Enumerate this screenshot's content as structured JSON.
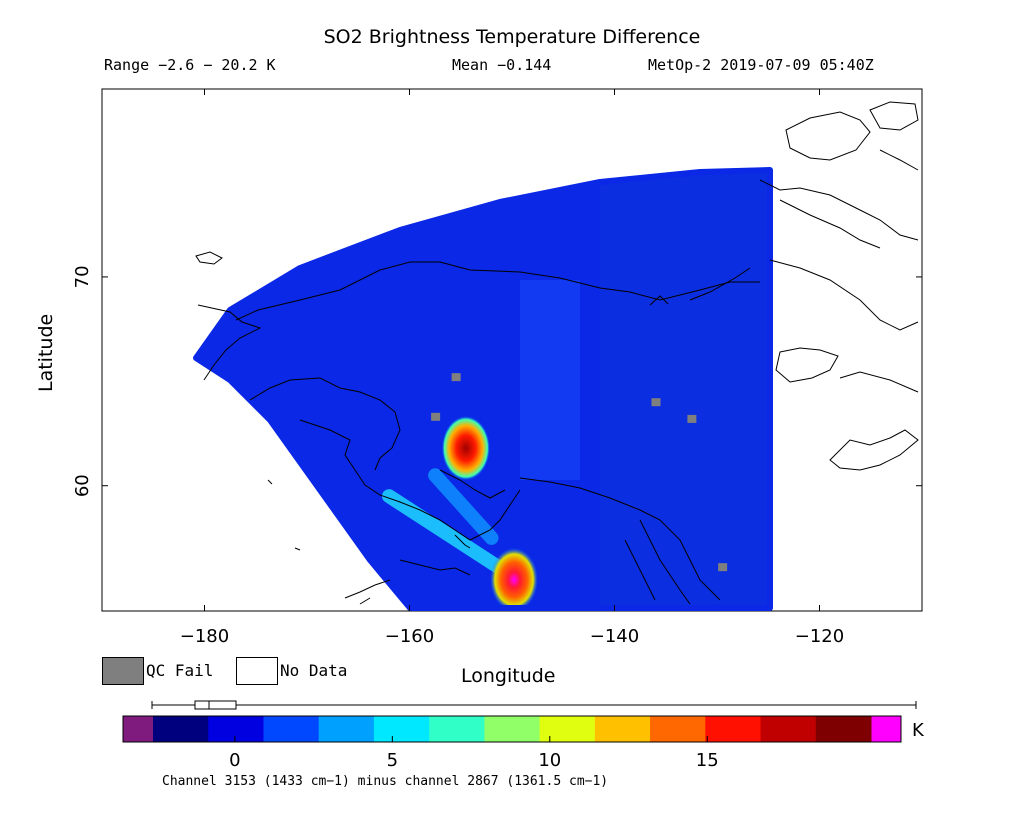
{
  "title": "SO2 Brightness Temperature Difference",
  "range_text": "Range −2.6 − 20.2 K",
  "mean_text": "Mean −0.144",
  "satellite_text": "MetOp-2 2019-07-09 05:40Z",
  "axes": {
    "xlabel": "Longitude",
    "ylabel": "Latitude",
    "x_ticks": [
      -180,
      -160,
      -140,
      -120
    ],
    "x_tick_labels": [
      "−180",
      "−160",
      "−140",
      "−120"
    ],
    "y_ticks": [
      60,
      70
    ],
    "y_tick_labels": [
      "60",
      "70"
    ],
    "xlim": [
      -190,
      -110
    ],
    "ylim": [
      54,
      79
    ]
  },
  "legend": {
    "qc_fail_label": "QC Fail",
    "qc_fail_color": "#7f7f7f",
    "no_data_label": "No Data",
    "no_data_color": "#ffffff"
  },
  "colorbar": {
    "ticks": [
      0,
      5,
      10,
      15
    ],
    "tick_labels": [
      "0",
      "5",
      "10",
      "15"
    ],
    "range": [
      -2.6,
      20.2
    ],
    "unit": "K",
    "under_color": "#7f1a7f",
    "over_color": "#ff00ff",
    "caption": "Channel 3153 (1433 cm−1) minus channel 2867 (1361.5 cm−1)",
    "colors": [
      "#00007f",
      "#0000e0",
      "#0048ff",
      "#00a0ff",
      "#00e8ff",
      "#30ffc8",
      "#90ff68",
      "#e0ff10",
      "#ffc000",
      "#ff6800",
      "#ff1000",
      "#c00000",
      "#7f0000"
    ]
  },
  "chart_data": {
    "type": "heatmap",
    "background_value": -0.144,
    "hotspots": [
      {
        "lon": -154.5,
        "lat": 61.8,
        "peak_value": 17.5
      },
      {
        "lon": -149.8,
        "lat": 55.5,
        "peak_value": 20.2
      }
    ],
    "plumes": [
      {
        "lon_start": -162,
        "lat_start": 59.5,
        "lon_end": -151,
        "lat_end": 56,
        "value": 6
      },
      {
        "lon_start": -157.5,
        "lat_start": 60.5,
        "lon_end": -152,
        "lat_end": 57.5,
        "value": 5
      }
    ],
    "qc_fail_points": [
      {
        "lon": -155.5,
        "lat": 65.2
      },
      {
        "lon": -157.5,
        "lat": 63.3
      },
      {
        "lon": -136.0,
        "lat": 64.0
      },
      {
        "lon": -132.5,
        "lat": 63.2
      },
      {
        "lon": -129.5,
        "lat": 56.1
      }
    ]
  }
}
